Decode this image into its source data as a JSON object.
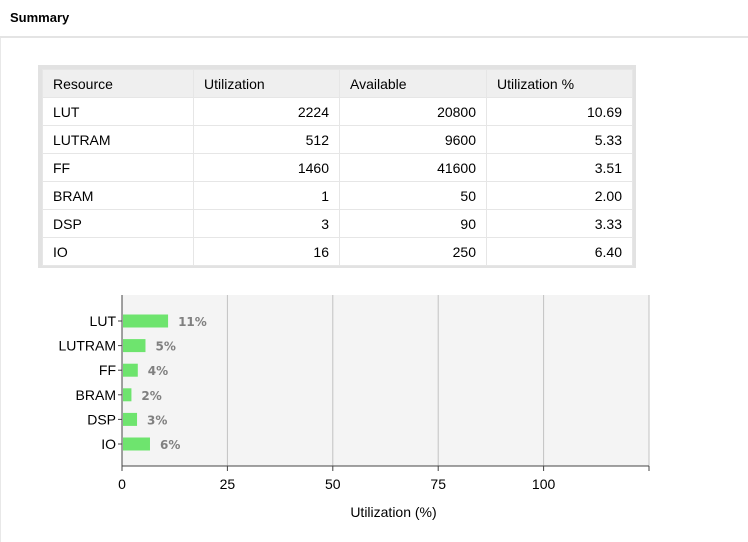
{
  "header": {
    "title": "Summary"
  },
  "table": {
    "columns": [
      "Resource",
      "Utilization",
      "Available",
      "Utilization %"
    ],
    "rows": [
      [
        "LUT",
        "2224",
        "20800",
        "10.69"
      ],
      [
        "LUTRAM",
        "512",
        "9600",
        "5.33"
      ],
      [
        "FF",
        "1460",
        "41600",
        "3.51"
      ],
      [
        "BRAM",
        "1",
        "50",
        "2.00"
      ],
      [
        "DSP",
        "3",
        "90",
        "3.33"
      ],
      [
        "IO",
        "16",
        "250",
        "6.40"
      ]
    ]
  },
  "chart_data": {
    "type": "bar",
    "orientation": "horizontal",
    "categories": [
      "LUT",
      "LUTRAM",
      "FF",
      "BRAM",
      "DSP",
      "IO"
    ],
    "values": [
      10.69,
      5.33,
      3.51,
      2.0,
      3.33,
      6.4
    ],
    "data_labels": [
      "11%",
      "5%",
      "4%",
      "2%",
      "3%",
      "6%"
    ],
    "xlabel": "Utilization (%)",
    "xlim": [
      0,
      125
    ],
    "xticks": [
      0,
      25,
      50,
      75,
      100
    ],
    "grid": true,
    "bar_color": "#6ee46e",
    "plot_background": "#f4f4f4"
  }
}
